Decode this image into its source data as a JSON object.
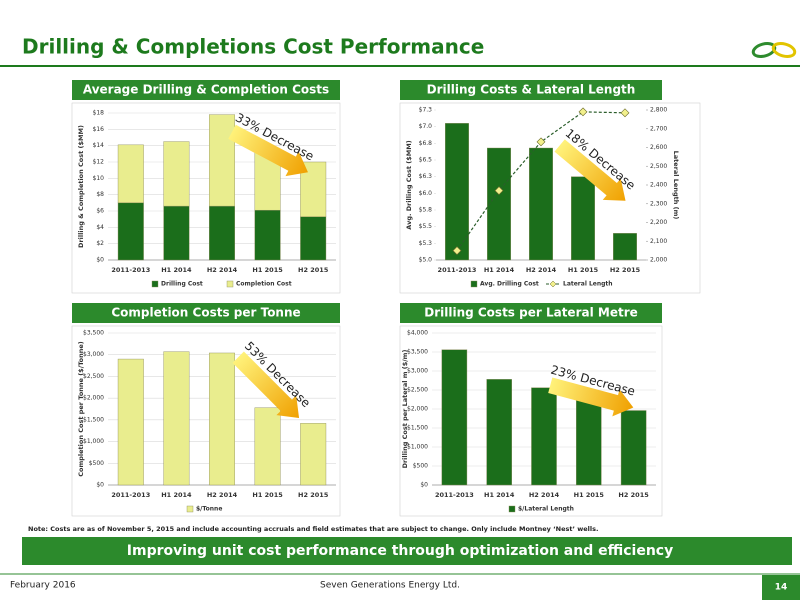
{
  "header": {
    "title": "Drilling & Completions Cost Performance"
  },
  "chart_data": [
    {
      "type": "bar",
      "title": "Average Drilling & Completion Costs",
      "stacked": true,
      "categories": [
        "2011-2013",
        "H1 2014",
        "H2 2014",
        "H1 2015",
        "H2 2015"
      ],
      "series": [
        {
          "name": "Drilling Cost",
          "color": "#1b6e1b",
          "values": [
            7.0,
            6.6,
            6.6,
            6.1,
            5.3
          ]
        },
        {
          "name": "Completion Cost",
          "color": "#e9ed8e",
          "values": [
            7.1,
            7.9,
            11.2,
            7.3,
            6.7
          ]
        }
      ],
      "ylabel": "Drilling & Completion Cost ($MM)",
      "ylim": [
        0,
        18
      ],
      "yticks": [
        {
          "value": 0,
          "label": "$0"
        },
        {
          "value": 2,
          "label": "$2"
        },
        {
          "value": 4,
          "label": "$4"
        },
        {
          "value": 6,
          "label": "$6"
        },
        {
          "value": 8,
          "label": "$8"
        },
        {
          "value": 10,
          "label": "$10"
        },
        {
          "value": 12,
          "label": "$12"
        },
        {
          "value": 14,
          "label": "$14"
        },
        {
          "value": 16,
          "label": "$16"
        },
        {
          "value": 18,
          "label": "$18"
        }
      ],
      "grid": true,
      "legend": "bottom",
      "annotation": "33% Decrease"
    },
    {
      "type": "bar",
      "title": "Drilling Costs & Lateral Length",
      "categories": [
        "2011-2013",
        "H1 2014",
        "H2 2014",
        "H1 2015",
        "H2 2015"
      ],
      "series": [
        {
          "name": "Avg. Drilling Cost",
          "color": "#1b6e1b",
          "values": [
            7.05,
            6.68,
            6.68,
            6.25,
            5.4
          ]
        },
        {
          "name": "Lateral Length",
          "type": "line",
          "axis": "y2",
          "color": "#2b5e2b",
          "values": [
            2050,
            2370,
            2630,
            2790,
            2785
          ]
        }
      ],
      "ylabel": "Avg. Drilling Cost ($MM)",
      "ylim": [
        5.0,
        7.25
      ],
      "yticks": [
        {
          "value": 5.0,
          "label": "$5.0"
        },
        {
          "value": 5.25,
          "label": "$5.3"
        },
        {
          "value": 5.5,
          "label": "$5.5"
        },
        {
          "value": 5.75,
          "label": "$5.8"
        },
        {
          "value": 6.0,
          "label": "$6.0"
        },
        {
          "value": 6.25,
          "label": "$6.3"
        },
        {
          "value": 6.5,
          "label": "$6.5"
        },
        {
          "value": 6.75,
          "label": "$6.8"
        },
        {
          "value": 7.0,
          "label": "$7.0"
        },
        {
          "value": 7.25,
          "label": "$7.3"
        }
      ],
      "y2label": "Lateral Length (m)",
      "y2lim": [
        2000,
        2800
      ],
      "y2ticks": [
        {
          "value": 2000,
          "label": "2,000"
        },
        {
          "value": 2100,
          "label": "2,100"
        },
        {
          "value": 2200,
          "label": "2,200"
        },
        {
          "value": 2300,
          "label": "2,300"
        },
        {
          "value": 2400,
          "label": "2,400"
        },
        {
          "value": 2500,
          "label": "2,500"
        },
        {
          "value": 2600,
          "label": "2,600"
        },
        {
          "value": 2700,
          "label": "2,700"
        },
        {
          "value": 2800,
          "label": "2,800"
        }
      ],
      "grid": false,
      "legend": "bottom",
      "annotation": "18% Decrease"
    },
    {
      "type": "bar",
      "title": "Completion Costs per Tonne",
      "categories": [
        "2011-2013",
        "H1 2014",
        "H2 2014",
        "H1 2015",
        "H2 2015"
      ],
      "series": [
        {
          "name": "$/Tonne",
          "color": "#e9ed8e",
          "values": [
            2900,
            3070,
            3040,
            1780,
            1420
          ]
        }
      ],
      "ylabel": "Completion Cost per Tonne ($/Tonne)",
      "ylim": [
        0,
        3500
      ],
      "yticks": [
        {
          "value": 0,
          "label": "$0"
        },
        {
          "value": 500,
          "label": "$500"
        },
        {
          "value": 1000,
          "label": "$1,000"
        },
        {
          "value": 1500,
          "label": "$1,500"
        },
        {
          "value": 2000,
          "label": "$2,000"
        },
        {
          "value": 2500,
          "label": "$2,500"
        },
        {
          "value": 3000,
          "label": "$3,000"
        },
        {
          "value": 3500,
          "label": "$3,500"
        }
      ],
      "grid": true,
      "legend": "bottom",
      "annotation": "53% Decrease"
    },
    {
      "type": "bar",
      "title": "Drilling Costs per Lateral Metre",
      "categories": [
        "2011-2013",
        "H1 2014",
        "H2 2014",
        "H1 2015",
        "H2 2015"
      ],
      "series": [
        {
          "name": "$/Lateral Length",
          "color": "#1b6e1b",
          "values": [
            3560,
            2780,
            2560,
            2240,
            1960
          ]
        }
      ],
      "ylabel": "Drilling Cost per Lateral m ($/m)",
      "ylim": [
        0,
        4000
      ],
      "yticks": [
        {
          "value": 0,
          "label": "$0"
        },
        {
          "value": 500,
          "label": "$500"
        },
        {
          "value": 1000,
          "label": "$1,000"
        },
        {
          "value": 1500,
          "label": "$1,500"
        },
        {
          "value": 2000,
          "label": "$2,000"
        },
        {
          "value": 2500,
          "label": "$2,500"
        },
        {
          "value": 3000,
          "label": "$3,000"
        },
        {
          "value": 3500,
          "label": "$3,500"
        },
        {
          "value": 4000,
          "label": "$4,000"
        }
      ],
      "grid": true,
      "legend": "bottom",
      "annotation": "23% Decrease"
    }
  ],
  "note": "Note: Costs are as of November 5, 2015 and include accounting accruals and field estimates that are subject to change. Only include Montney ‘Nest’ wells.",
  "banner": "Improving unit cost performance through optimization and efficiency",
  "footer": {
    "date": "February 2016",
    "company": "Seven Generations Energy Ltd.",
    "page": "14"
  }
}
